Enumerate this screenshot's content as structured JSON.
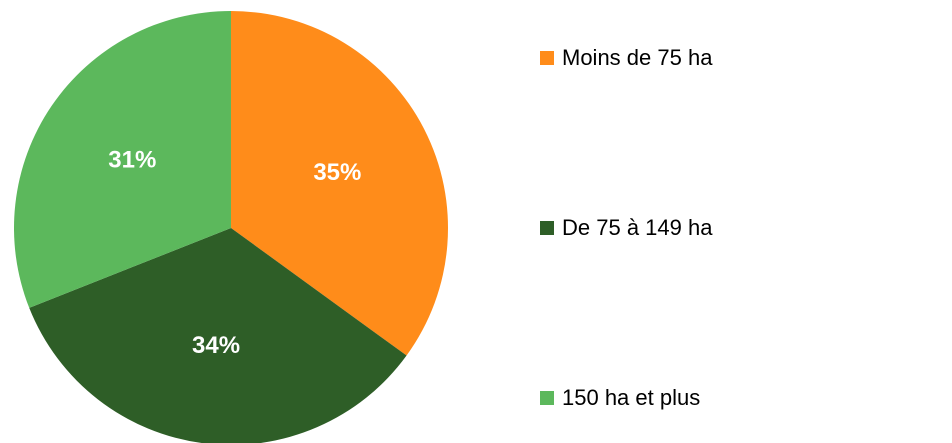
{
  "chart_data": {
    "type": "pie",
    "categories": [
      "Moins de 75 ha",
      "De 75 à 149 ha",
      "150 ha et plus"
    ],
    "values": [
      35,
      34,
      31
    ],
    "value_labels": [
      "35%",
      "34%",
      "31%"
    ],
    "colors": [
      "#ff8c1a",
      "#2e5e27",
      "#5cb85c"
    ],
    "legend": "right"
  }
}
